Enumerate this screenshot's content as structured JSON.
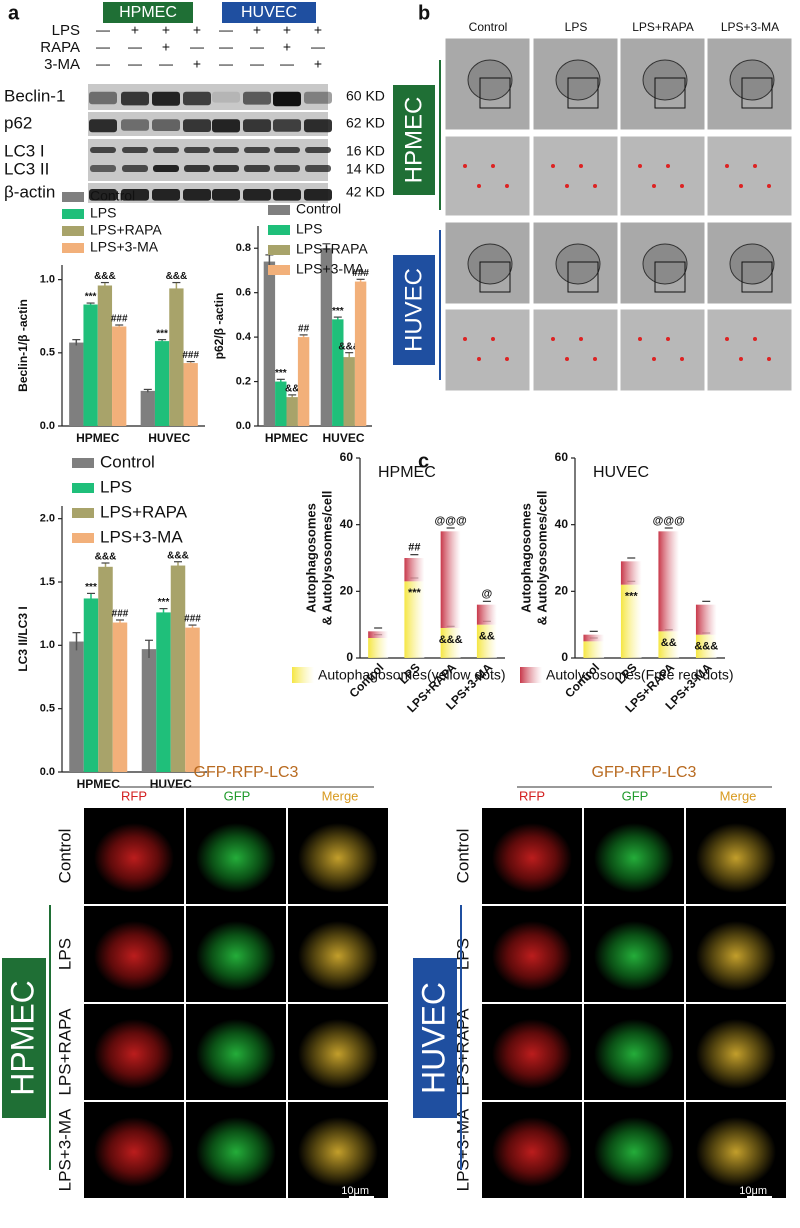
{
  "panel_labels": [
    "a",
    "b",
    "c"
  ],
  "western_blot": {
    "cell_lines": [
      "HPMEC",
      "HUVEC"
    ],
    "rows": [
      {
        "label": "LPS",
        "signs": [
          "—",
          "+",
          "+",
          "+",
          "—",
          "+",
          "+",
          "+"
        ]
      },
      {
        "label": "RAPA",
        "signs": [
          "—",
          "—",
          "+",
          "—",
          "—",
          "—",
          "+",
          "—"
        ]
      },
      {
        "label": "3-MA",
        "signs": [
          "—",
          "—",
          "—",
          "+",
          "—",
          "—",
          "—",
          "+"
        ]
      }
    ],
    "proteins": [
      "Beclin-1",
      "p62",
      "LC3 I",
      "LC3 II",
      "β-actin"
    ],
    "weights": [
      "60 KD",
      "62 KD",
      "16 KD",
      "14 KD",
      "42 KD"
    ]
  },
  "tem": {
    "columns": [
      "Control",
      "LPS",
      "LPS+RAPA",
      "LPS+3-MA"
    ],
    "cell_lines": [
      "HPMEC",
      "HUVEC"
    ]
  },
  "chart_data": [
    {
      "type": "bar",
      "ylabel": "Beclin-1/β -actin",
      "categories": [
        "HPMEC",
        "HUVEC"
      ],
      "ylim": [
        0,
        1.1
      ],
      "yticks": [
        {
          "value": 0,
          "label": "0.0"
        },
        0.5,
        {
          "value": 1,
          "label": "1.0"
        }
      ],
      "series": [
        {
          "name": "Control",
          "color": "#7f7f7f",
          "values": [
            0.57,
            0.24
          ],
          "errors": [
            0.02,
            0.01
          ],
          "annotations": [
            null,
            null
          ]
        },
        {
          "name": "LPS",
          "color": "#1fbf7a",
          "values": [
            0.83,
            0.58
          ],
          "errors": [
            0.01,
            0.01
          ],
          "annotations": [
            "***",
            "***"
          ]
        },
        {
          "name": "LPS+RAPA",
          "color": "#a8a36a",
          "values": [
            0.96,
            0.94
          ],
          "errors": [
            0.02,
            0.04
          ],
          "annotations": [
            "&&&",
            "&&&"
          ]
        },
        {
          "name": "LPS+3-MA",
          "color": "#f2b07a",
          "values": [
            0.68,
            0.43
          ],
          "errors": [
            0.01,
            0.01
          ],
          "annotations": [
            "###",
            "###"
          ]
        }
      ]
    },
    {
      "type": "bar",
      "ylabel": "p62/β -actin",
      "categories": [
        "HPMEC",
        "HUVEC"
      ],
      "ylim": [
        0,
        0.9
      ],
      "yticks": [
        {
          "value": 0,
          "label": "0.0"
        },
        0.2,
        0.4,
        0.6,
        0.8
      ],
      "series": [
        {
          "name": "Control",
          "color": "#7f7f7f",
          "values": [
            0.74,
            0.8
          ],
          "errors": [
            0.03,
            0.02
          ],
          "annotations": [
            null,
            null
          ]
        },
        {
          "name": "LPS",
          "color": "#1fbf7a",
          "values": [
            0.2,
            0.48
          ],
          "errors": [
            0.01,
            0.01
          ],
          "annotations": [
            "***",
            "***"
          ]
        },
        {
          "name": "LPS+RAPA",
          "color": "#a8a36a",
          "values": [
            0.13,
            0.31
          ],
          "errors": [
            0.01,
            0.02
          ],
          "annotations": [
            "&&",
            "&&&"
          ]
        },
        {
          "name": "LPS+3-MA",
          "color": "#f2b07a",
          "values": [
            0.4,
            0.65
          ],
          "errors": [
            0.01,
            0.01
          ],
          "annotations": [
            "##",
            "###"
          ]
        }
      ]
    },
    {
      "type": "bar",
      "ylabel": "LC3 II/LC3 I",
      "categories": [
        "HPMEC",
        "HUVEC"
      ],
      "ylim": [
        0,
        2.1
      ],
      "yticks": [
        {
          "value": 0,
          "label": "0.0"
        },
        0.5,
        {
          "value": 1,
          "label": "1.0"
        },
        1.5,
        {
          "value": 2,
          "label": "2.0"
        }
      ],
      "series": [
        {
          "name": "Control",
          "color": "#7f7f7f",
          "values": [
            1.03,
            0.97
          ],
          "errors": [
            0.07,
            0.07
          ],
          "annotations": [
            null,
            null
          ]
        },
        {
          "name": "LPS",
          "color": "#1fbf7a",
          "values": [
            1.37,
            1.26
          ],
          "errors": [
            0.04,
            0.03
          ],
          "annotations": [
            "***",
            "***"
          ]
        },
        {
          "name": "LPS+RAPA",
          "color": "#a8a36a",
          "values": [
            1.62,
            1.63
          ],
          "errors": [
            0.03,
            0.03
          ],
          "annotations": [
            "&&&",
            "&&&"
          ]
        },
        {
          "name": "LPS+3-MA",
          "color": "#f2b07a",
          "values": [
            1.18,
            1.14
          ],
          "errors": [
            0.02,
            0.02
          ],
          "annotations": [
            "###",
            "###"
          ]
        }
      ]
    },
    {
      "type": "stacked_bar",
      "title": "HPMEC",
      "ylabel": [
        "Autophagosomes",
        "& Autolysosomes/cell"
      ],
      "categories": [
        "Control",
        "LPS",
        "LPS+RAPA",
        "LPS+3-MA"
      ],
      "ylim": [
        0,
        60
      ],
      "yticks": [
        0,
        20,
        40,
        60
      ],
      "series": [
        {
          "color": "#f5e642",
          "values": [
            6,
            23,
            9,
            10
          ],
          "errors": [
            1,
            1,
            0.5,
            1
          ],
          "annotations": [
            null,
            "***",
            "&&&",
            "&&"
          ]
        },
        {
          "color": "#c8384a",
          "values": [
            2,
            7,
            29,
            6
          ],
          "errors": [
            1,
            1,
            1,
            1
          ],
          "annotations": [
            null,
            "##",
            "@@@",
            "@"
          ]
        }
      ]
    },
    {
      "type": "stacked_bar",
      "title": "HUVEC",
      "ylabel": [
        "Autophagosomes",
        "& Autolysosomes/cell"
      ],
      "categories": [
        "Control",
        "LPS",
        "LPS+RAPA",
        "LPS+3-MA"
      ],
      "ylim": [
        0,
        60
      ],
      "yticks": [
        0,
        20,
        40,
        60
      ],
      "series": [
        {
          "color": "#f5e642",
          "values": [
            5,
            22,
            8,
            7
          ],
          "errors": [
            1,
            1,
            0.5,
            0.5
          ],
          "annotations": [
            null,
            "***",
            "&&",
            "&&&"
          ]
        },
        {
          "color": "#c8384a",
          "values": [
            2,
            7,
            30,
            9
          ],
          "errors": [
            1,
            1,
            1,
            1
          ],
          "annotations": [
            null,
            null,
            "@@@",
            null
          ]
        }
      ]
    }
  ],
  "panel_c_legend": [
    "Autophagosomes(yellow dots)",
    "Autolysosomes(Free red dots)"
  ],
  "fluorescence": [
    {
      "cell_line": "HPMEC",
      "title": "GFP-RFP-LC3",
      "channels": [
        "RFP",
        "GFP",
        "Merge"
      ],
      "rows": [
        "Control",
        "LPS",
        "LPS+RAPA",
        "LPS+3-MA"
      ],
      "scale": "10μm"
    },
    {
      "cell_line": "HUVEC",
      "title": "GFP-RFP-LC3",
      "channels": [
        "RFP",
        "GFP",
        "Merge"
      ],
      "rows": [
        "Control",
        "LPS",
        "LPS+RAPA",
        "LPS+3-MA"
      ],
      "scale": "10μm"
    }
  ]
}
